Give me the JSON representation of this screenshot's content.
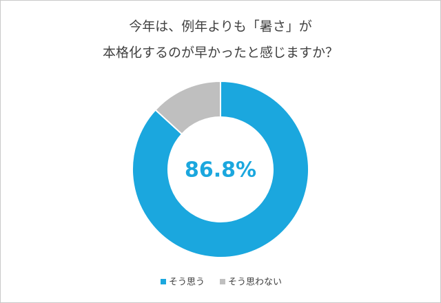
{
  "chart_data": {
    "type": "donut",
    "title": [
      "今年は、例年よりも「暑さ」が",
      "本格化するのが早かったと感じますか？"
    ],
    "categories": [
      "そう思う",
      "そう思わない"
    ],
    "values": [
      86.8,
      13.2
    ],
    "value_labels": [
      "86.8%",
      null
    ],
    "colors": [
      "#1ba7de",
      "#bfbfbf"
    ],
    "legend": "bottom"
  }
}
